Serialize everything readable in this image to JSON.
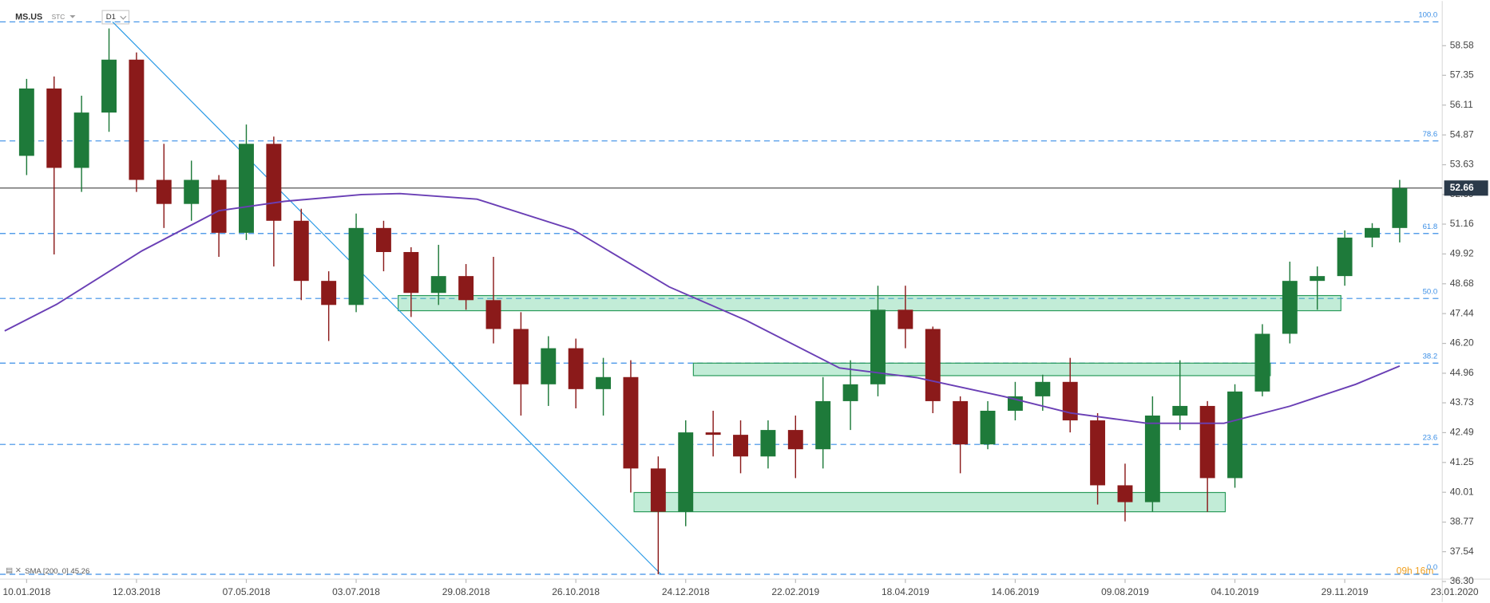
{
  "chart_data": {
    "type": "candlestick",
    "symbol": "MS.US",
    "source": "STC",
    "interval": "D1",
    "countdown": "09h 16m",
    "x": [
      0,
      1,
      2,
      3,
      4,
      5,
      6,
      7,
      8,
      9,
      10,
      11,
      12,
      13,
      14,
      15,
      16,
      17,
      18,
      19,
      20,
      21,
      22,
      23,
      24,
      25,
      26,
      27,
      28,
      29,
      30,
      31,
      32,
      33,
      34,
      35,
      36,
      37,
      38,
      39,
      40,
      41,
      42,
      43,
      44,
      45,
      46,
      47,
      48,
      49,
      50
    ],
    "open": [
      54.0,
      56.8,
      53.5,
      55.8,
      58.0,
      53.0,
      52.0,
      53.0,
      50.8,
      54.5,
      51.3,
      48.8,
      47.8,
      51.0,
      50.0,
      48.3,
      49.0,
      48.0,
      46.8,
      44.5,
      46.0,
      44.3,
      44.8,
      41.0,
      39.2,
      42.5,
      42.4,
      41.5,
      42.6,
      41.8,
      43.8,
      44.5,
      47.6,
      46.8,
      43.8,
      42.0,
      43.4,
      44.0,
      44.6,
      43.0,
      40.3,
      39.6,
      43.2,
      43.6,
      40.6,
      44.2,
      46.6,
      48.8,
      49.0,
      50.6,
      51.0
    ],
    "high": [
      57.2,
      57.3,
      56.5,
      59.3,
      58.3,
      54.5,
      53.8,
      53.2,
      55.3,
      54.8,
      51.8,
      49.2,
      51.6,
      51.3,
      50.2,
      50.3,
      49.5,
      49.8,
      47.5,
      46.5,
      46.4,
      45.6,
      45.5,
      41.5,
      43.0,
      43.4,
      43.0,
      43.0,
      43.2,
      44.8,
      45.5,
      48.6,
      48.6,
      46.9,
      44.0,
      43.8,
      44.6,
      44.9,
      45.6,
      43.3,
      41.2,
      44.0,
      45.5,
      43.8,
      44.5,
      47.0,
      49.6,
      49.4,
      50.9,
      51.2,
      53.0
    ],
    "low": [
      53.2,
      49.9,
      52.5,
      55.0,
      52.5,
      51.0,
      51.3,
      49.8,
      50.5,
      49.4,
      48.0,
      46.3,
      47.5,
      49.2,
      47.3,
      47.8,
      47.6,
      46.2,
      43.2,
      43.6,
      43.5,
      43.2,
      40.0,
      36.6,
      38.6,
      41.5,
      40.8,
      41.0,
      40.6,
      41.0,
      42.6,
      44.0,
      46.0,
      43.3,
      40.8,
      41.8,
      43.0,
      43.4,
      42.5,
      39.5,
      38.8,
      39.2,
      42.6,
      39.2,
      40.2,
      44.0,
      46.2,
      47.6,
      48.6,
      50.2,
      50.4
    ],
    "close": [
      56.8,
      53.5,
      55.8,
      58.0,
      53.0,
      52.0,
      53.0,
      50.8,
      54.5,
      51.3,
      48.8,
      47.8,
      51.0,
      50.0,
      48.3,
      49.0,
      48.0,
      46.8,
      44.5,
      46.0,
      44.3,
      44.8,
      41.0,
      39.2,
      42.5,
      42.4,
      41.5,
      42.6,
      41.8,
      43.8,
      44.5,
      47.6,
      46.8,
      43.8,
      42.0,
      43.4,
      44.0,
      44.6,
      43.0,
      40.3,
      39.6,
      43.2,
      43.6,
      40.6,
      44.2,
      46.6,
      48.8,
      49.0,
      50.6,
      51.0,
      52.66
    ],
    "up_color": "#1e7a3a",
    "down_color": "#8b1a1a",
    "sma": {
      "label": "SMA [200, 0] 45.26",
      "color": "#6a3fb5",
      "x": [
        -0.8,
        1.1,
        4.2,
        7.0,
        9.4,
        12.2,
        13.6,
        16.4,
        19.9,
        23.4,
        26.2,
        29.6,
        32.4,
        35.6,
        38.0,
        40.8,
        43.6,
        46.0,
        48.4,
        50.0
      ],
      "values": [
        46.72,
        47.83,
        50.05,
        51.72,
        52.11,
        52.39,
        52.43,
        52.2,
        50.93,
        48.55,
        47.16,
        45.18,
        44.78,
        43.99,
        43.31,
        42.88,
        42.88,
        43.59,
        44.5,
        45.26
      ]
    },
    "current_price": 52.66,
    "fib_levels": [
      {
        "label": "100.0",
        "value": 59.57
      },
      {
        "label": "78.6",
        "value": 54.62
      },
      {
        "label": "61.8",
        "value": 50.77
      },
      {
        "label": "50.0",
        "value": 48.07
      },
      {
        "label": "38.2",
        "value": 45.38
      },
      {
        "label": "23.6",
        "value": 42.0
      },
      {
        "label": "0.0",
        "value": 36.6
      }
    ],
    "zones": [
      {
        "x": [
          13.53,
          47.86
        ],
        "y": [
          47.56,
          48.19
        ]
      },
      {
        "x": [
          24.28,
          45.29
        ],
        "y": [
          44.86,
          45.38
        ]
      },
      {
        "x": [
          22.12,
          43.65
        ],
        "y": [
          39.2,
          40.0
        ]
      }
    ],
    "trendline": {
      "x": [
        3.13,
        23.1
      ],
      "y": [
        59.57,
        36.6
      ]
    },
    "xlim": [
      -0.97,
      51.55
    ],
    "ylim": [
      36.2,
      60.44
    ],
    "xticks": [
      {
        "value": 0,
        "label": "10.01.2018"
      },
      {
        "value": 4,
        "label": "12.03.2018"
      },
      {
        "value": 8,
        "label": "07.05.2018"
      },
      {
        "value": 12,
        "label": "03.07.2018"
      },
      {
        "value": 16,
        "label": "29.08.2018"
      },
      {
        "value": 20,
        "label": "26.10.2018"
      },
      {
        "value": 24,
        "label": "24.12.2018"
      },
      {
        "value": 28,
        "label": "22.02.2019"
      },
      {
        "value": 32,
        "label": "18.04.2019"
      },
      {
        "value": 36,
        "label": "14.06.2019"
      },
      {
        "value": 40,
        "label": "09.08.2019"
      },
      {
        "value": 44,
        "label": "04.10.2019"
      },
      {
        "value": 48,
        "label": "29.11.2019"
      },
      {
        "value": 52,
        "label": "23.01.2020"
      }
    ],
    "yticks": [
      58.58,
      57.35,
      56.11,
      54.87,
      53.63,
      52.39,
      51.16,
      49.92,
      48.68,
      47.44,
      {
        "value": 46.2,
        "label": "46.20"
      },
      44.96,
      43.73,
      42.49,
      41.25,
      40.01,
      38.77,
      37.54,
      {
        "value": 36.3,
        "label": "36.30"
      }
    ]
  }
}
